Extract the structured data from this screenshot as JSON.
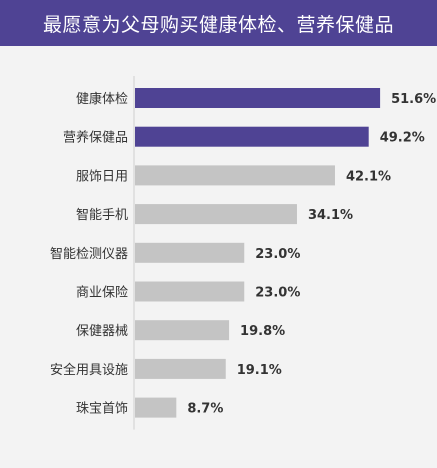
{
  "title": "最愿意为父母购买健康体检、营养保健品",
  "colors": {
    "title_bg": "#4f4394",
    "highlight_bar": "#4f4394",
    "default_bar": "#c4c4c4",
    "axis": "#cfcfcf",
    "background": "#f3f3f3"
  },
  "chart_data": {
    "type": "bar",
    "orientation": "horizontal",
    "categories": [
      "健康体检",
      "营养保健品",
      "服饰日用",
      "智能手机",
      "智能检测仪器",
      "商业保险",
      "保健器械",
      "安全用具设施",
      "珠宝首饰"
    ],
    "values": [
      51.6,
      49.2,
      42.1,
      34.1,
      23.0,
      23.0,
      19.8,
      19.1,
      8.7
    ],
    "value_labels": [
      "51.6%",
      "49.2%",
      "42.1%",
      "34.1%",
      "23.0%",
      "23.0%",
      "19.8%",
      "19.1%",
      "8.7%"
    ],
    "highlighted": [
      true,
      true,
      false,
      false,
      false,
      false,
      false,
      false,
      false
    ],
    "unit": "%",
    "xlim": [
      0,
      60
    ],
    "grid": false,
    "legend": "none"
  }
}
